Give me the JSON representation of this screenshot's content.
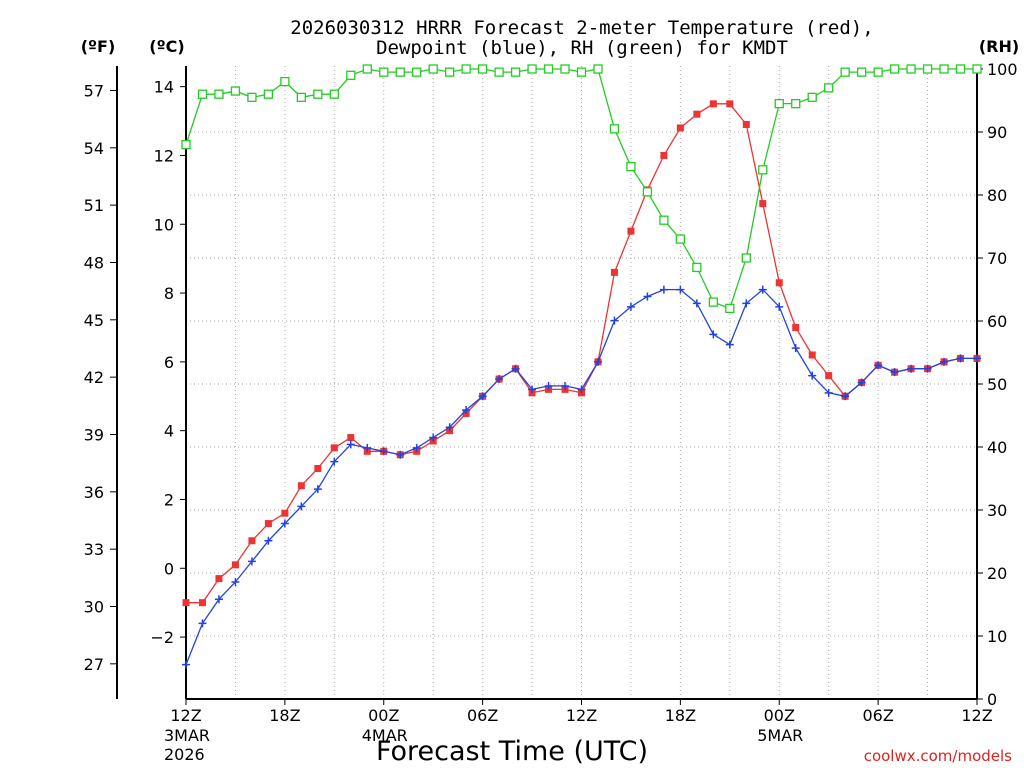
{
  "chart_data": {
    "type": "line",
    "title_line1": "2026030312 HRRR Forecast 2-meter Temperature (red),",
    "title_line2": "Dewpoint (blue), RH (green) for KMDT",
    "xlabel": "Forecast Time (UTC)",
    "watermark": "coolwx.com/models",
    "unit_f": "(ºF)",
    "unit_c": "(ºC)",
    "unit_rh": "(RH)",
    "x_range_hours": [
      0,
      48
    ],
    "c_range": [
      -3.8,
      14.6
    ],
    "rh_range": [
      0,
      100
    ],
    "f_ticks": [
      "57",
      "54",
      "51",
      "48",
      "45",
      "42",
      "39",
      "36",
      "33",
      "30",
      "27"
    ],
    "f_tick_values": [
      57,
      54,
      51,
      48,
      45,
      42,
      39,
      36,
      33,
      30,
      27
    ],
    "c_ticks": [
      "14",
      "12",
      "10",
      "8",
      "6",
      "4",
      "2",
      "0",
      "−2"
    ],
    "c_tick_values": [
      14,
      12,
      10,
      8,
      6,
      4,
      2,
      0,
      -2
    ],
    "rh_ticks": [
      "100",
      "90",
      "80",
      "70",
      "60",
      "50",
      "40",
      "30",
      "20",
      "10",
      "0"
    ],
    "rh_tick_values": [
      100,
      90,
      80,
      70,
      60,
      50,
      40,
      30,
      20,
      10,
      0
    ],
    "x_ticks": [
      {
        "hour": 0,
        "label": "12Z",
        "date": "3MAR",
        "year": "2026"
      },
      {
        "hour": 6,
        "label": "18Z",
        "date": "",
        "year": ""
      },
      {
        "hour": 12,
        "label": "00Z",
        "date": "4MAR",
        "year": ""
      },
      {
        "hour": 18,
        "label": "06Z",
        "date": "",
        "year": ""
      },
      {
        "hour": 24,
        "label": "12Z",
        "date": "",
        "year": ""
      },
      {
        "hour": 30,
        "label": "18Z",
        "date": "",
        "year": ""
      },
      {
        "hour": 36,
        "label": "00Z",
        "date": "5MAR",
        "year": ""
      },
      {
        "hour": 42,
        "label": "06Z",
        "date": "",
        "year": ""
      },
      {
        "hour": 48,
        "label": "12Z",
        "date": "",
        "year": ""
      }
    ],
    "series": [
      {
        "name": "Temperature",
        "unit": "C",
        "color": "#ee3333",
        "marker": "filled-square",
        "values": [
          -1.0,
          -1.0,
          -0.3,
          0.1,
          0.8,
          1.3,
          1.6,
          2.4,
          2.9,
          3.5,
          3.8,
          3.4,
          3.4,
          3.3,
          3.4,
          3.7,
          4.0,
          4.5,
          5.0,
          5.5,
          5.8,
          5.1,
          5.2,
          5.2,
          5.1,
          6.0,
          8.6,
          9.8,
          11.0,
          12.0,
          12.8,
          13.2,
          13.5,
          13.5,
          12.9,
          10.6,
          8.3,
          7.0,
          6.2,
          5.6,
          5.0,
          5.4,
          5.9,
          5.7,
          5.8,
          5.8,
          6.0,
          6.1,
          6.1
        ]
      },
      {
        "name": "Dewpoint",
        "unit": "C",
        "color": "#2244dd",
        "marker": "plus",
        "values": [
          -2.8,
          -1.6,
          -0.9,
          -0.4,
          0.2,
          0.8,
          1.3,
          1.8,
          2.3,
          3.1,
          3.6,
          3.5,
          3.4,
          3.3,
          3.5,
          3.8,
          4.1,
          4.6,
          5.0,
          5.5,
          5.8,
          5.2,
          5.3,
          5.3,
          5.2,
          6.0,
          7.2,
          7.6,
          7.9,
          8.1,
          8.1,
          7.7,
          6.8,
          6.5,
          7.7,
          8.1,
          7.6,
          6.4,
          5.6,
          5.1,
          5.0,
          5.4,
          5.9,
          5.7,
          5.8,
          5.8,
          6.0,
          6.1,
          6.1
        ]
      },
      {
        "name": "RH",
        "unit": "%",
        "color": "#22cc22",
        "marker": "open-square",
        "values": [
          88,
          96,
          96,
          96.5,
          95.5,
          96,
          98,
          95.5,
          96,
          96,
          99,
          100,
          99.5,
          99.5,
          99.5,
          100,
          99.5,
          100,
          100,
          99.5,
          99.5,
          100,
          100,
          100,
          99.5,
          100,
          90.5,
          84.5,
          80.5,
          76,
          73,
          68.5,
          63,
          62,
          70,
          84,
          94.5,
          94.5,
          95.5,
          97,
          99.5,
          99.5,
          99.5,
          100,
          100,
          100,
          100,
          100,
          100
        ]
      }
    ]
  }
}
